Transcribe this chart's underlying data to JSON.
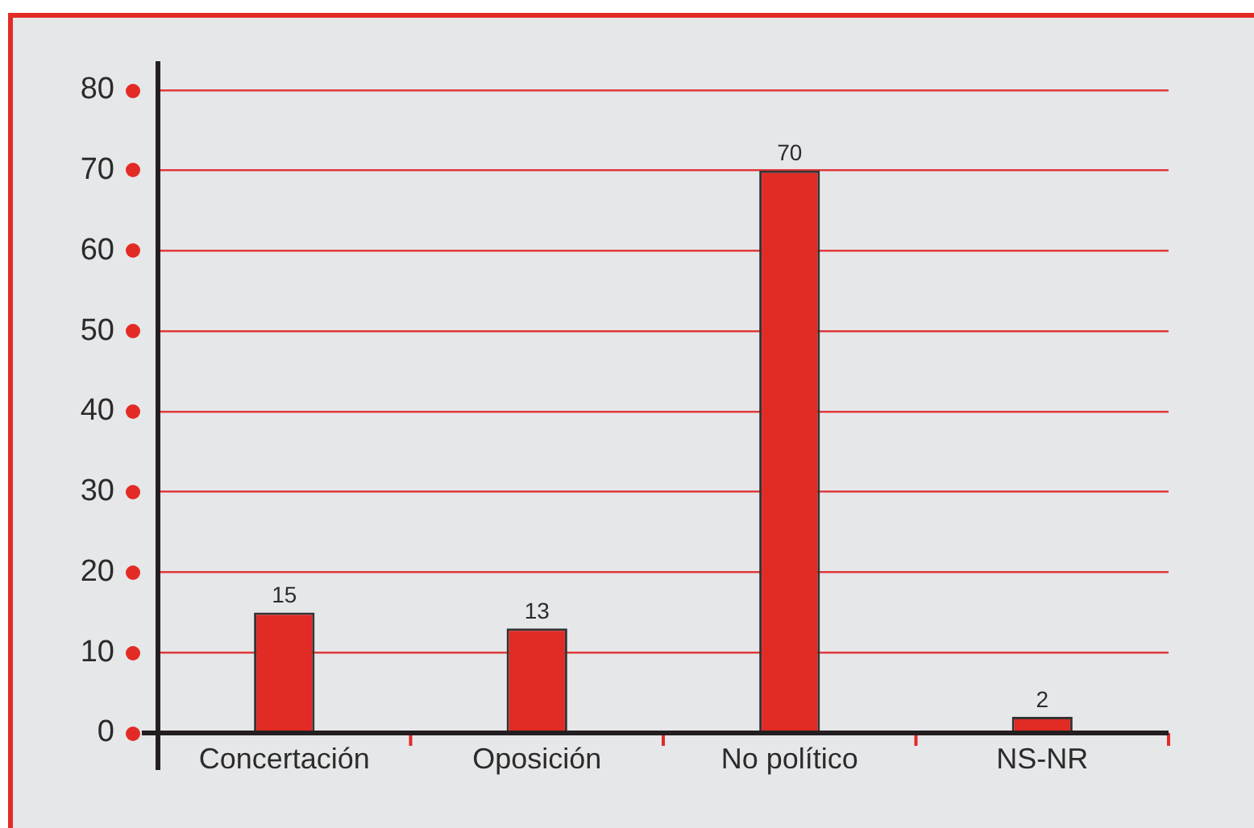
{
  "chart_data": {
    "type": "bar",
    "categories": [
      "Concertación",
      "Oposición",
      "No político",
      "NS-NR"
    ],
    "values": [
      15,
      13,
      70,
      2
    ],
    "color": "#e12b25",
    "ylim": [
      0,
      80
    ],
    "yticks": [
      0,
      10,
      20,
      30,
      40,
      50,
      60,
      70,
      80
    ],
    "grid": "y",
    "data_labels": true
  }
}
